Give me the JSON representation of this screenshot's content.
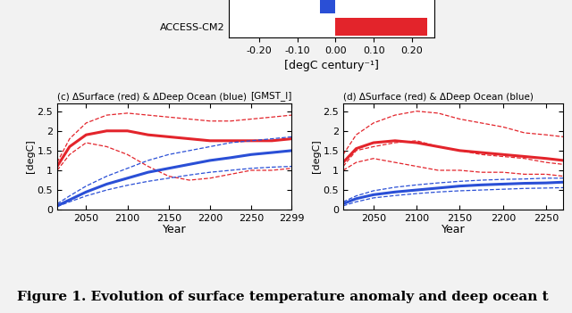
{
  "chart_data": [
    {
      "type": "bar",
      "orientation": "horizontal",
      "categories": [
        null,
        "ACCESS-CM2"
      ],
      "values": [
        -0.04,
        0.24
      ],
      "colors": [
        "#2a4fd6",
        "#e3242b"
      ],
      "xlabel": "[degC century⁻¹]",
      "xlim": [
        -0.28,
        0.26
      ],
      "xticks": [
        {
          "value": -0.2,
          "label": "-0.20"
        },
        {
          "value": -0.1,
          "label": "-0.10"
        },
        {
          "value": 0,
          "label": "0.00"
        },
        {
          "value": 0.1,
          "label": "0.10"
        },
        {
          "value": 0.2,
          "label": "0.20"
        }
      ],
      "tick_labels": "x"
    },
    {
      "type": "line",
      "title": "(c) ΔSurface (red) & ΔDeep Ocean (blue)",
      "annotation": "[GMST_I]",
      "xlabel": "Year",
      "ylabel": "[degC]",
      "x": [
        2015,
        2030,
        2050,
        2075,
        2100,
        2125,
        2150,
        2175,
        2200,
        2225,
        2250,
        2275,
        2299
      ],
      "xlim": [
        2015,
        2299
      ],
      "xticks": [
        2050,
        2100,
        2150,
        2200,
        2250,
        2299
      ],
      "ylim": [
        0,
        2.7
      ],
      "yticks": [
        0,
        0.5,
        1,
        1.5,
        2,
        2.5
      ],
      "series": [
        {
          "color": "#e3242b",
          "line_style": "dashed",
          "values": [
            1.2,
            1.8,
            2.2,
            2.4,
            2.45,
            2.4,
            2.35,
            2.3,
            2.25,
            2.25,
            2.3,
            2.35,
            2.4
          ]
        },
        {
          "color": "#e3242b",
          "line_style": "dashed",
          "values": [
            1.0,
            1.4,
            1.7,
            1.6,
            1.4,
            1.1,
            0.85,
            0.75,
            0.8,
            0.9,
            1.0,
            1.0,
            1.05
          ]
        },
        {
          "color": "#e3242b",
          "line_style": "solid",
          "values": [
            1.1,
            1.6,
            1.9,
            2.0,
            2.0,
            1.9,
            1.85,
            1.8,
            1.75,
            1.75,
            1.75,
            1.75,
            1.8
          ]
        },
        {
          "color": "#2a4fd6",
          "line_style": "dashed",
          "values": [
            0.15,
            0.35,
            0.6,
            0.85,
            1.05,
            1.25,
            1.4,
            1.5,
            1.6,
            1.7,
            1.75,
            1.8,
            1.85
          ]
        },
        {
          "color": "#2a4fd6",
          "line_style": "dashed",
          "values": [
            0.08,
            0.2,
            0.35,
            0.5,
            0.62,
            0.72,
            0.8,
            0.88,
            0.95,
            1.0,
            1.05,
            1.08,
            1.1
          ]
        },
        {
          "color": "#2a4fd6",
          "line_style": "solid",
          "values": [
            0.1,
            0.25,
            0.45,
            0.65,
            0.8,
            0.95,
            1.05,
            1.15,
            1.25,
            1.32,
            1.4,
            1.45,
            1.5
          ]
        }
      ]
    },
    {
      "type": "line",
      "title": "(d) ΔSurface (red) & ΔDeep Ocean (blue)",
      "xlabel": "Year",
      "ylabel": "[degC]",
      "x": [
        2015,
        2030,
        2050,
        2075,
        2100,
        2125,
        2150,
        2175,
        2200,
        2225,
        2250,
        2270
      ],
      "xlim": [
        2015,
        2270
      ],
      "xticks": [
        2050,
        2100,
        2150,
        2200,
        2250
      ],
      "ylim": [
        0,
        2.7
      ],
      "yticks": [
        0,
        0.5,
        1,
        1.5,
        2,
        2.5
      ],
      "series": [
        {
          "color": "#e3242b",
          "line_style": "dashed",
          "values": [
            1.4,
            1.9,
            2.2,
            2.4,
            2.5,
            2.45,
            2.3,
            2.2,
            2.1,
            1.95,
            1.9,
            1.85
          ]
        },
        {
          "color": "#e3242b",
          "line_style": "dashed",
          "values": [
            1.1,
            1.5,
            1.6,
            1.7,
            1.75,
            1.6,
            1.5,
            1.4,
            1.35,
            1.3,
            1.2,
            1.15
          ]
        },
        {
          "color": "#e3242b",
          "line_style": "dashed",
          "values": [
            1.0,
            1.2,
            1.3,
            1.2,
            1.1,
            1.0,
            1.0,
            0.95,
            0.95,
            0.9,
            0.9,
            0.85
          ]
        },
        {
          "color": "#e3242b",
          "line_style": "solid",
          "values": [
            1.2,
            1.55,
            1.7,
            1.75,
            1.7,
            1.6,
            1.5,
            1.45,
            1.4,
            1.35,
            1.3,
            1.25
          ]
        },
        {
          "color": "#2a4fd6",
          "line_style": "dashed",
          "values": [
            0.2,
            0.35,
            0.48,
            0.57,
            0.63,
            0.68,
            0.72,
            0.75,
            0.77,
            0.78,
            0.8,
            0.8
          ]
        },
        {
          "color": "#2a4fd6",
          "line_style": "dashed",
          "values": [
            0.1,
            0.2,
            0.3,
            0.36,
            0.41,
            0.45,
            0.48,
            0.5,
            0.52,
            0.54,
            0.55,
            0.56
          ]
        },
        {
          "color": "#2a4fd6",
          "line_style": "solid",
          "values": [
            0.15,
            0.28,
            0.38,
            0.45,
            0.5,
            0.55,
            0.6,
            0.63,
            0.65,
            0.67,
            0.68,
            0.7
          ]
        }
      ]
    }
  ],
  "caption": "Figure 1. Evolution of surface temperature anomaly and deep ocean t"
}
